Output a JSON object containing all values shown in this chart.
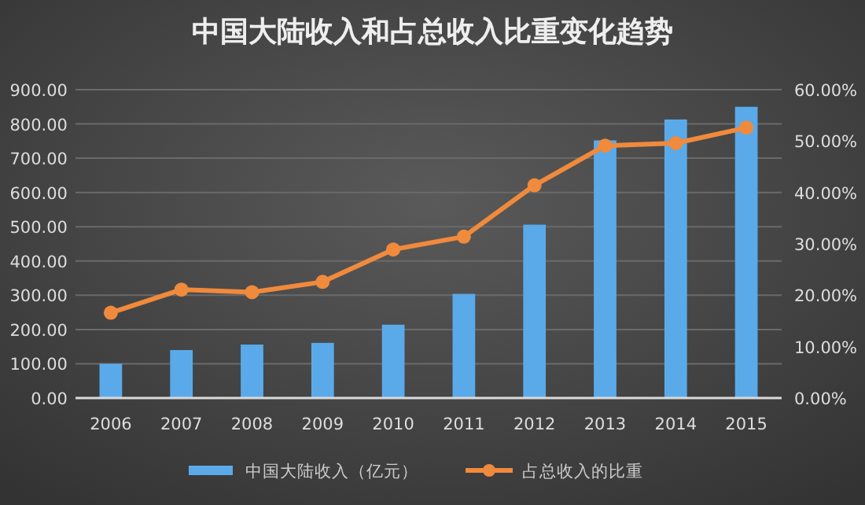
{
  "chart_data": {
    "type": "bar",
    "title": "中国大陆收入和占总收入比重变化趋势",
    "categories": [
      "2006",
      "2007",
      "2008",
      "2009",
      "2010",
      "2011",
      "2012",
      "2013",
      "2014",
      "2015"
    ],
    "series": [
      {
        "name": "中国大陆收入（亿元）",
        "color": "#5aaaea",
        "values": [
          100,
          140,
          156,
          161,
          214,
          304,
          506,
          752,
          813,
          850
        ]
      },
      {
        "name": "占总收入的比重",
        "type": "line",
        "axis": "y2",
        "color": "#f08a3c",
        "marker": "circle",
        "values": [
          16.6,
          21.1,
          20.6,
          22.6,
          28.9,
          31.4,
          41.4,
          49.1,
          49.6,
          52.6
        ]
      }
    ],
    "ylim": [
      0,
      900
    ],
    "yticks": [
      {
        "value": 0,
        "label": "0.00"
      },
      {
        "value": 100,
        "label": "100.00"
      },
      {
        "value": 200,
        "label": "200.00"
      },
      {
        "value": 300,
        "label": "300.00"
      },
      {
        "value": 400,
        "label": "400.00"
      },
      {
        "value": 500,
        "label": "500.00"
      },
      {
        "value": 600,
        "label": "600.00"
      },
      {
        "value": 700,
        "label": "700.00"
      },
      {
        "value": 800,
        "label": "800.00"
      },
      {
        "value": 900,
        "label": "900.00"
      }
    ],
    "y2lim": [
      0,
      60
    ],
    "y2ticks": [
      {
        "value": 0,
        "label": "0.00%"
      },
      {
        "value": 10,
        "label": "10.00%"
      },
      {
        "value": 20,
        "label": "20.00%"
      },
      {
        "value": 30,
        "label": "30.00%"
      },
      {
        "value": 40,
        "label": "40.00%"
      },
      {
        "value": 50,
        "label": "50.00%"
      },
      {
        "value": 60,
        "label": "60.00%"
      }
    ],
    "grid": "y",
    "legend": "bottom"
  }
}
